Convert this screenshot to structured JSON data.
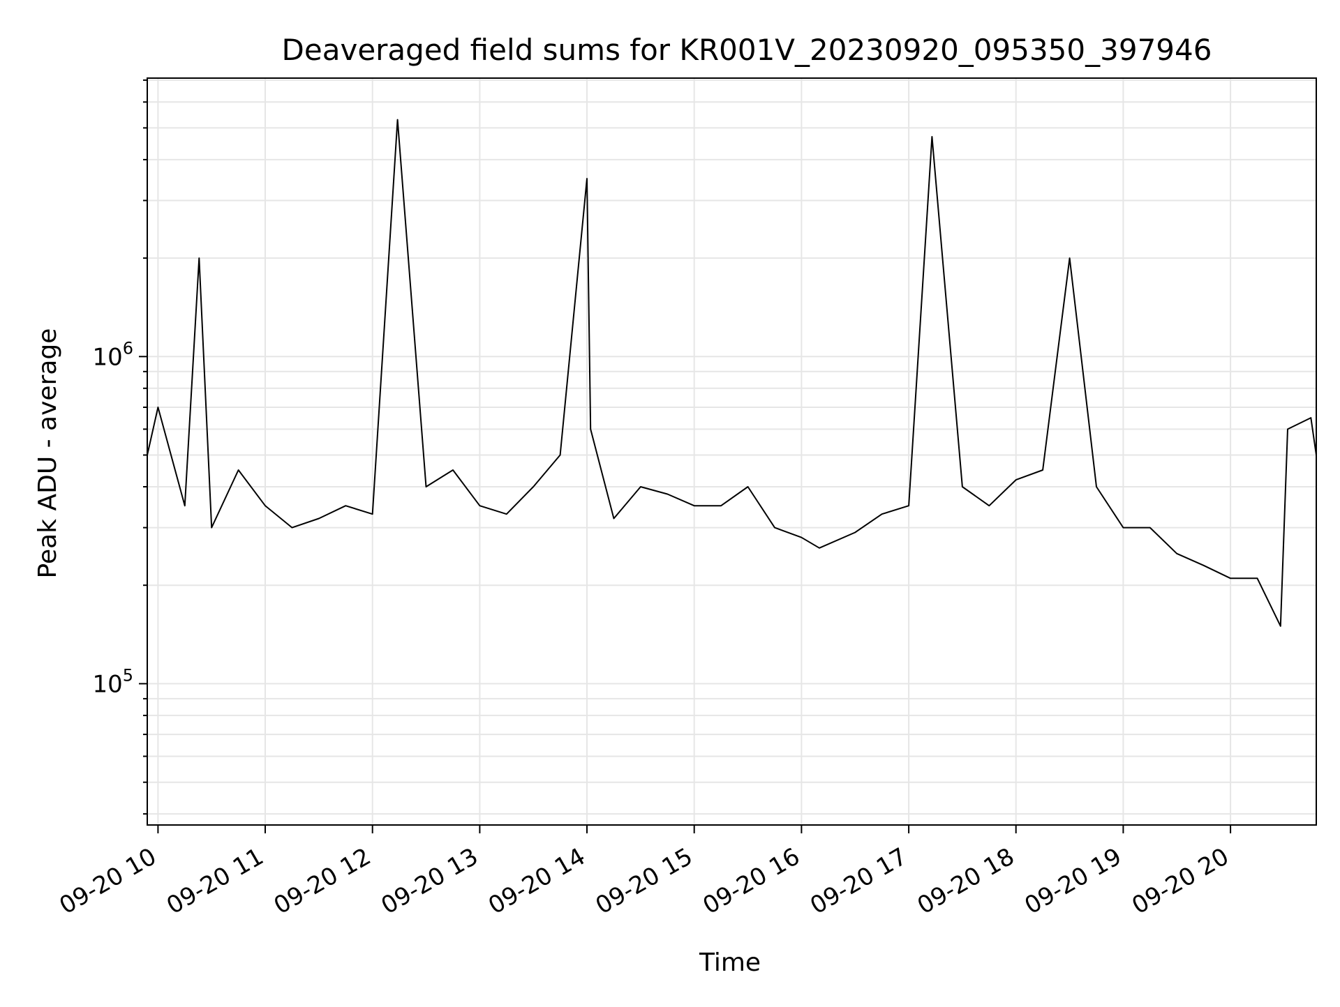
{
  "chart_data": {
    "type": "line",
    "title": "Deaveraged field sums for KR001V_20230920_095350_397946",
    "xlabel": "Time",
    "ylabel": "Peak ADU - average",
    "y_scale": "log",
    "ylim": [
      37000,
      7100000
    ],
    "xlim": [
      "2023-09-20 09:54",
      "2023-09-20 20:48"
    ],
    "x_ticks": [
      {
        "value": "2023-09-20 10:00",
        "label": "09-20 10"
      },
      {
        "value": "2023-09-20 11:00",
        "label": "09-20 11"
      },
      {
        "value": "2023-09-20 12:00",
        "label": "09-20 12"
      },
      {
        "value": "2023-09-20 13:00",
        "label": "09-20 13"
      },
      {
        "value": "2023-09-20 14:00",
        "label": "09-20 14"
      },
      {
        "value": "2023-09-20 15:00",
        "label": "09-20 15"
      },
      {
        "value": "2023-09-20 16:00",
        "label": "09-20 16"
      },
      {
        "value": "2023-09-20 17:00",
        "label": "09-20 17"
      },
      {
        "value": "2023-09-20 18:00",
        "label": "09-20 18"
      },
      {
        "value": "2023-09-20 19:00",
        "label": "09-20 19"
      },
      {
        "value": "2023-09-20 20:00",
        "label": "09-20 20"
      }
    ],
    "y_ticks": [
      {
        "value": 100000,
        "base": "10",
        "exp": "5"
      },
      {
        "value": 1000000,
        "base": "10",
        "exp": "6"
      }
    ],
    "grid": true,
    "line_color": "#000000",
    "grid_color": "#e6e6e6",
    "series": [
      {
        "x": [
          "2023-09-20 09:54",
          "2023-09-20 10:00",
          "2023-09-20 10:15",
          "2023-09-20 10:23",
          "2023-09-20 10:30",
          "2023-09-20 10:45",
          "2023-09-20 11:00",
          "2023-09-20 11:15",
          "2023-09-20 11:30",
          "2023-09-20 11:45",
          "2023-09-20 12:00",
          "2023-09-20 12:14",
          "2023-09-20 12:30",
          "2023-09-20 12:45",
          "2023-09-20 13:00",
          "2023-09-20 13:15",
          "2023-09-20 13:30",
          "2023-09-20 13:45",
          "2023-09-20 14:00",
          "2023-09-20 14:02",
          "2023-09-20 14:15",
          "2023-09-20 14:30",
          "2023-09-20 14:45",
          "2023-09-20 15:00",
          "2023-09-20 15:15",
          "2023-09-20 15:30",
          "2023-09-20 15:45",
          "2023-09-20 16:00",
          "2023-09-20 16:10",
          "2023-09-20 16:30",
          "2023-09-20 16:45",
          "2023-09-20 17:00",
          "2023-09-20 17:13",
          "2023-09-20 17:30",
          "2023-09-20 17:45",
          "2023-09-20 18:00",
          "2023-09-20 18:15",
          "2023-09-20 18:30",
          "2023-09-20 18:45",
          "2023-09-20 19:00",
          "2023-09-20 19:15",
          "2023-09-20 19:30",
          "2023-09-20 19:45",
          "2023-09-20 20:00",
          "2023-09-20 20:15",
          "2023-09-20 20:28",
          "2023-09-20 20:32",
          "2023-09-20 20:45",
          "2023-09-20 20:48"
        ],
        "y": [
          500000,
          700000,
          350000,
          2000000,
          300000,
          450000,
          350000,
          300000,
          320000,
          350000,
          330000,
          5300000,
          400000,
          450000,
          350000,
          330000,
          400000,
          500000,
          3500000,
          600000,
          320000,
          400000,
          380000,
          350000,
          350000,
          400000,
          300000,
          280000,
          260000,
          290000,
          330000,
          350000,
          4700000,
          400000,
          350000,
          420000,
          450000,
          2000000,
          400000,
          300000,
          300000,
          250000,
          230000,
          210000,
          210000,
          150000,
          600000,
          650000,
          500000
        ]
      }
    ]
  }
}
